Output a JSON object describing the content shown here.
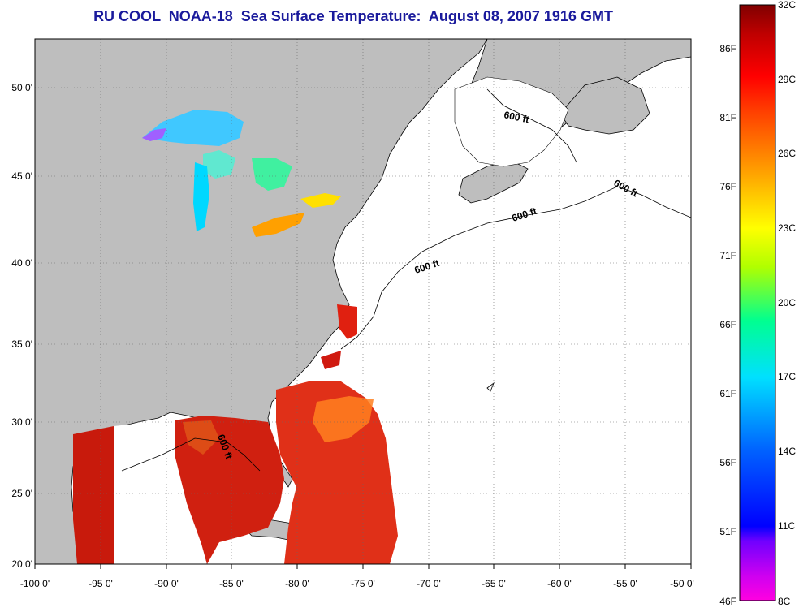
{
  "title": "RU COOL  NOAA-18  Sea Surface Temperature:  August 08, 2007 1916 GMT",
  "map": {
    "lon_range": [
      -100,
      -50
    ],
    "lat_range": [
      20,
      52.5
    ],
    "x_ticks": [
      "-100 0'",
      "-95 0'",
      "-90 0'",
      "-85 0'",
      "-80 0'",
      "-75 0'",
      "-70 0'",
      "-65 0'",
      "-60 0'",
      "-55 0'",
      "-50 0'"
    ],
    "y_ticks": [
      "50 0'",
      "45 0'",
      "40 0'",
      "35 0'",
      "30 0'",
      "25 0'",
      "20 0'"
    ],
    "land_color": "#bebebe",
    "no_data_color": "#ffffff",
    "isobath_labels": [
      "600 ft",
      "600 ft",
      "600 ft",
      "600 ft",
      "600 ft"
    ]
  },
  "colorbar": {
    "celsius_labels": [
      "32C",
      "29C",
      "26C",
      "23C",
      "20C",
      "17C",
      "14C",
      "11C",
      "8C"
    ],
    "fahrenheit_labels": [
      "86F",
      "81F",
      "76F",
      "71F",
      "66F",
      "61F",
      "56F",
      "51F",
      "46F"
    ],
    "range_c": [
      8,
      32
    ],
    "colors": [
      "#ff00e0",
      "#8000ff",
      "#0000ff",
      "#0080ff",
      "#00e0ff",
      "#00ff80",
      "#c0ff00",
      "#ffff00",
      "#ffa000",
      "#ff4000",
      "#ff0000",
      "#a00000",
      "#800000"
    ]
  }
}
